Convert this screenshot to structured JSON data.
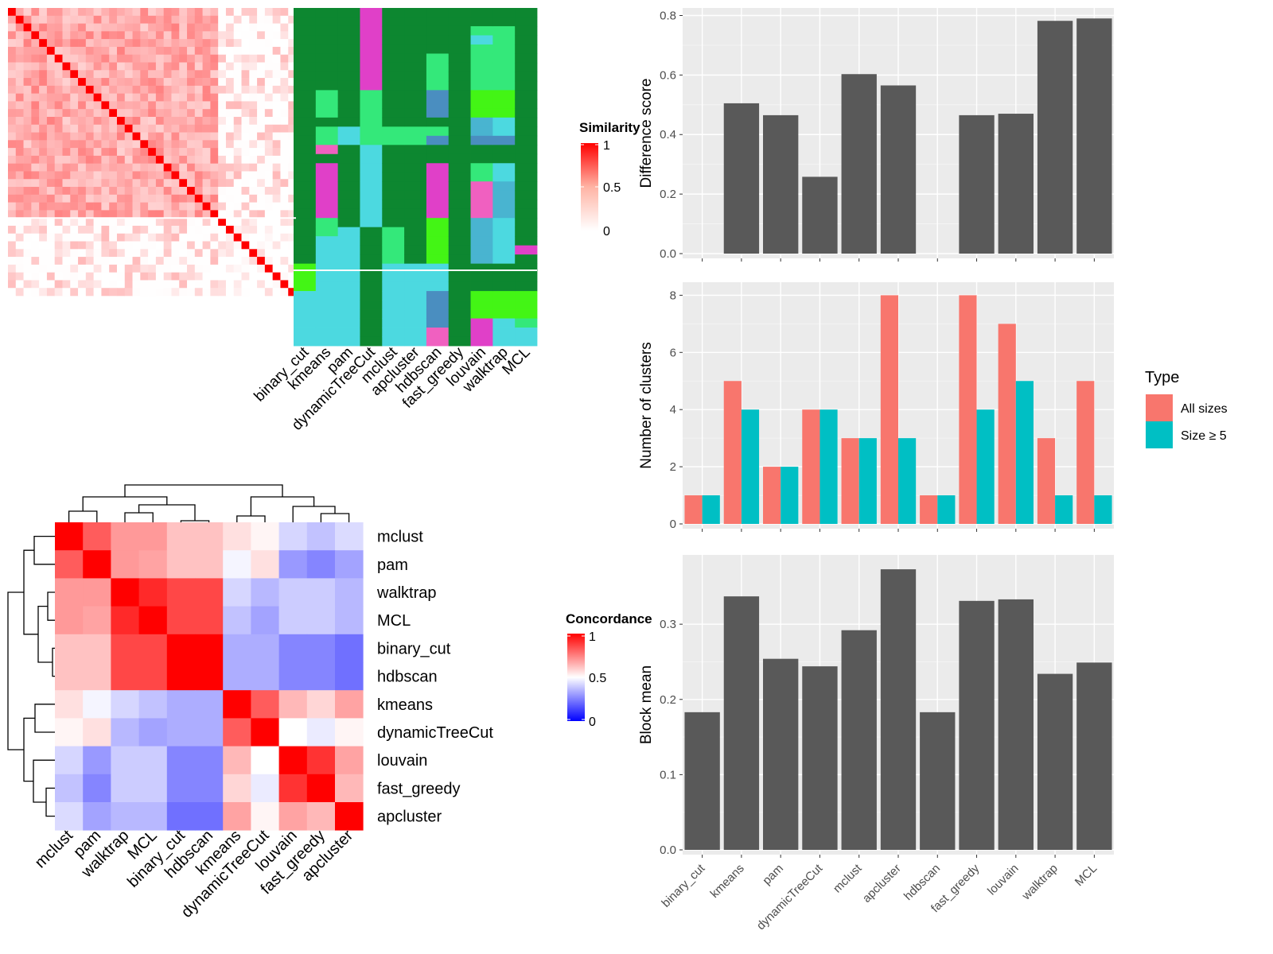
{
  "chart_data": [
    {
      "id": "similarity_heatmap",
      "type": "heatmap",
      "legend_title": "Similarity",
      "legend_ticks": [
        "1",
        "0.5",
        "0"
      ],
      "method_labels": [
        "binary_cut",
        "kmeans",
        "pam",
        "dynamicTreeCut",
        "mclust",
        "apcluster",
        "hdbscan",
        "fast_greedy",
        "louvain",
        "walktrap",
        "MCL"
      ],
      "n_terms": 37,
      "group_split_after_row": 27,
      "cluster_colors": [
        "#0d8730",
        "#e040c8",
        "#4cd9e0",
        "#34e87a",
        "#43f515",
        "#4a8ec0",
        "#49b4d0",
        "#f060c0"
      ],
      "cluster_columns": [
        [
          0,
          0,
          0,
          0,
          0,
          0,
          0,
          0,
          0,
          0,
          0,
          0,
          0,
          0,
          0,
          0,
          0,
          0,
          0,
          0,
          0,
          0,
          0,
          0,
          0,
          0,
          0,
          0,
          4,
          4,
          4,
          2,
          2,
          2,
          2,
          2,
          2
        ],
        [
          0,
          0,
          0,
          0,
          0,
          0,
          0,
          0,
          0,
          3,
          3,
          3,
          0,
          3,
          3,
          7,
          0,
          1,
          1,
          1,
          1,
          1,
          1,
          3,
          3,
          2,
          2,
          2,
          2,
          2,
          2,
          2,
          2,
          2,
          2,
          2,
          2
        ],
        [
          0,
          0,
          0,
          0,
          0,
          0,
          0,
          0,
          0,
          0,
          0,
          0,
          0,
          2,
          2,
          0,
          0,
          0,
          0,
          0,
          0,
          0,
          0,
          0,
          2,
          2,
          2,
          2,
          2,
          2,
          2,
          2,
          2,
          2,
          2,
          2,
          2
        ],
        [
          1,
          1,
          1,
          1,
          1,
          1,
          1,
          1,
          1,
          3,
          3,
          3,
          3,
          3,
          3,
          2,
          2,
          2,
          2,
          2,
          2,
          2,
          2,
          2,
          0,
          0,
          0,
          0,
          0,
          0,
          0,
          0,
          0,
          0,
          0,
          0,
          0
        ],
        [
          0,
          0,
          0,
          0,
          0,
          0,
          0,
          0,
          0,
          0,
          0,
          0,
          0,
          3,
          3,
          0,
          0,
          0,
          0,
          0,
          0,
          0,
          0,
          0,
          3,
          3,
          3,
          3,
          2,
          2,
          2,
          2,
          2,
          2,
          2,
          2,
          2
        ],
        [
          0,
          0,
          0,
          0,
          0,
          0,
          0,
          0,
          0,
          0,
          0,
          0,
          0,
          3,
          3,
          0,
          0,
          0,
          0,
          0,
          0,
          0,
          0,
          0,
          0,
          0,
          0,
          0,
          2,
          2,
          2,
          2,
          2,
          2,
          2,
          2,
          2
        ],
        [
          0,
          0,
          0,
          0,
          0,
          3,
          3,
          3,
          3,
          5,
          5,
          5,
          0,
          3,
          5,
          0,
          0,
          1,
          1,
          1,
          1,
          1,
          1,
          4,
          4,
          4,
          4,
          4,
          2,
          2,
          2,
          5,
          5,
          5,
          5,
          7,
          7
        ],
        [
          0,
          0,
          0,
          0,
          0,
          0,
          0,
          0,
          0,
          0,
          0,
          0,
          0,
          0,
          0,
          0,
          0,
          0,
          0,
          0,
          0,
          0,
          0,
          0,
          0,
          0,
          0,
          0,
          0,
          0,
          0,
          0,
          0,
          0,
          0,
          0,
          0
        ],
        [
          0,
          0,
          3,
          2,
          3,
          3,
          3,
          3,
          3,
          4,
          4,
          4,
          6,
          6,
          5,
          0,
          0,
          3,
          3,
          7,
          7,
          7,
          7,
          6,
          6,
          6,
          6,
          6,
          0,
          0,
          0,
          4,
          4,
          4,
          1,
          1,
          1
        ],
        [
          0,
          0,
          3,
          3,
          3,
          3,
          3,
          3,
          3,
          4,
          4,
          4,
          2,
          2,
          5,
          0,
          0,
          2,
          2,
          6,
          6,
          6,
          6,
          2,
          2,
          2,
          2,
          2,
          0,
          0,
          0,
          4,
          4,
          4,
          2,
          2,
          2
        ],
        [
          0,
          0,
          0,
          0,
          0,
          0,
          0,
          0,
          0,
          0,
          0,
          0,
          0,
          0,
          0,
          0,
          0,
          0,
          0,
          0,
          0,
          0,
          0,
          0,
          0,
          0,
          1,
          0,
          0,
          0,
          0,
          4,
          4,
          4,
          3,
          2,
          2
        ]
      ]
    },
    {
      "id": "concordance_heatmap",
      "type": "heatmap",
      "legend_title": "Concordance",
      "legend_ticks": [
        "1",
        "0.5",
        "0"
      ],
      "labels": [
        "mclust",
        "pam",
        "walktrap",
        "MCL",
        "binary_cut",
        "hdbscan",
        "kmeans",
        "dynamicTreeCut",
        "louvain",
        "fast_greedy",
        "apcluster"
      ],
      "matrix": [
        [
          1.0,
          0.82,
          0.7,
          0.7,
          0.62,
          0.62,
          0.56,
          0.52,
          0.42,
          0.38,
          0.43
        ],
        [
          0.82,
          1.0,
          0.7,
          0.68,
          0.62,
          0.62,
          0.48,
          0.56,
          0.3,
          0.26,
          0.32
        ],
        [
          0.7,
          0.7,
          1.0,
          0.92,
          0.86,
          0.86,
          0.42,
          0.36,
          0.4,
          0.4,
          0.36
        ],
        [
          0.7,
          0.68,
          0.92,
          1.0,
          0.86,
          0.86,
          0.38,
          0.32,
          0.4,
          0.4,
          0.36
        ],
        [
          0.62,
          0.62,
          0.86,
          0.86,
          1.0,
          1.0,
          0.34,
          0.34,
          0.26,
          0.26,
          0.22
        ],
        [
          0.62,
          0.62,
          0.86,
          0.86,
          1.0,
          1.0,
          0.34,
          0.34,
          0.26,
          0.26,
          0.22
        ],
        [
          0.56,
          0.48,
          0.42,
          0.38,
          0.34,
          0.34,
          1.0,
          0.82,
          0.64,
          0.58,
          0.68
        ],
        [
          0.52,
          0.56,
          0.36,
          0.32,
          0.34,
          0.34,
          0.82,
          1.0,
          0.5,
          0.46,
          0.52
        ],
        [
          0.42,
          0.3,
          0.4,
          0.4,
          0.26,
          0.26,
          0.64,
          0.5,
          1.0,
          0.9,
          0.68
        ],
        [
          0.38,
          0.26,
          0.4,
          0.4,
          0.26,
          0.26,
          0.58,
          0.46,
          0.9,
          1.0,
          0.64
        ],
        [
          0.43,
          0.32,
          0.36,
          0.36,
          0.22,
          0.22,
          0.68,
          0.52,
          0.68,
          0.64,
          1.0
        ]
      ]
    },
    {
      "id": "difference_score",
      "type": "bar",
      "ylabel": "Difference score",
      "categories": [
        "binary_cut",
        "kmeans",
        "pam",
        "dynamicTreeCut",
        "mclust",
        "apcluster",
        "hdbscan",
        "fast_greedy",
        "louvain",
        "walktrap",
        "MCL"
      ],
      "values": [
        0,
        0.505,
        0.465,
        0.258,
        0.603,
        0.565,
        0,
        0.465,
        0.47,
        0.782,
        0.79
      ],
      "ylim": [
        0,
        0.82
      ],
      "yticks": [
        "0.0",
        "0.2",
        "0.4",
        "0.6",
        "0.8"
      ],
      "bar_color": "#595959",
      "grid": true
    },
    {
      "id": "number_of_clusters",
      "type": "bar",
      "ylabel": "Number of clusters",
      "categories": [
        "binary_cut",
        "kmeans",
        "pam",
        "dynamicTreeCut",
        "mclust",
        "apcluster",
        "hdbscan",
        "fast_greedy",
        "louvain",
        "walktrap",
        "MCL"
      ],
      "series": [
        {
          "name": "All sizes",
          "values": [
            1,
            5,
            2,
            4,
            3,
            8,
            1,
            8,
            7,
            3,
            5
          ],
          "color": "#f8766d"
        },
        {
          "name": "Size ≥ 5",
          "values": [
            1,
            4,
            2,
            4,
            3,
            3,
            1,
            4,
            5,
            1,
            1
          ],
          "color": "#00bfc4"
        }
      ],
      "ylim": [
        0,
        8.4
      ],
      "yticks": [
        "0",
        "2",
        "4",
        "6",
        "8"
      ],
      "legend_title": "Type",
      "legend_position": "right",
      "grid": true
    },
    {
      "id": "block_mean",
      "type": "bar",
      "ylabel": "Block mean",
      "categories": [
        "binary_cut",
        "kmeans",
        "pam",
        "dynamicTreeCut",
        "mclust",
        "apcluster",
        "hdbscan",
        "fast_greedy",
        "louvain",
        "walktrap",
        "MCL"
      ],
      "values": [
        0.183,
        0.337,
        0.254,
        0.244,
        0.292,
        0.373,
        0.183,
        0.331,
        0.333,
        0.234,
        0.249
      ],
      "ylim": [
        0,
        0.39
      ],
      "yticks": [
        "0.0",
        "0.1",
        "0.2",
        "0.3"
      ],
      "bar_color": "#595959",
      "grid": true
    }
  ]
}
